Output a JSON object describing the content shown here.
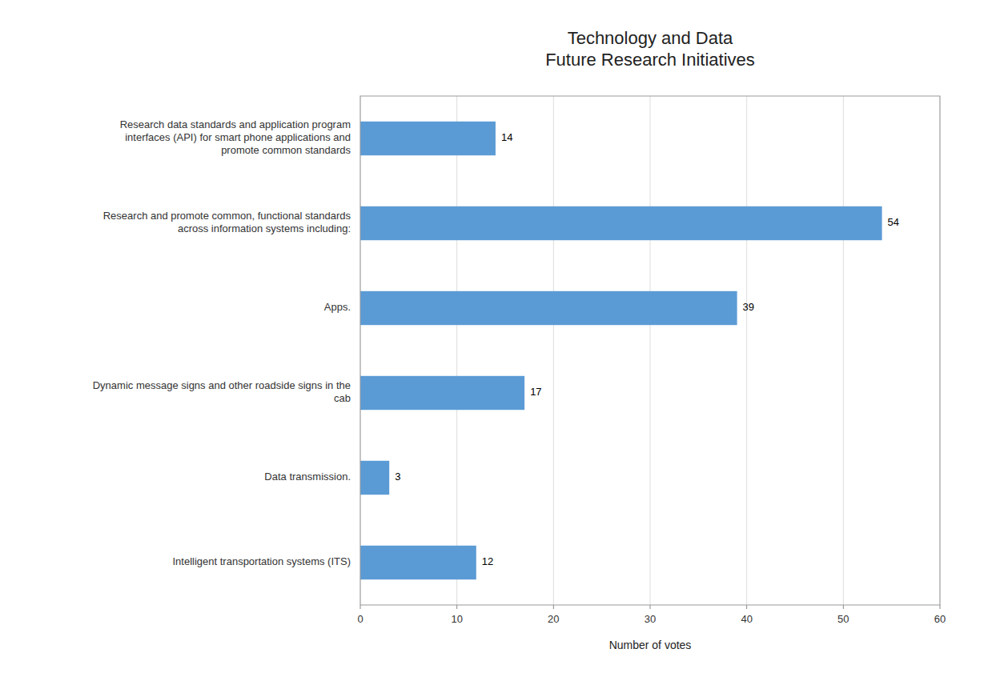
{
  "chart_data": {
    "type": "bar",
    "orientation": "horizontal",
    "title": "Technology and Data\nFuture Research Initiatives",
    "categories": [
      "Research data standards and application program\ninterfaces (API) for smart phone applications and\npromote common standards",
      "Research and promote common, functional standards\nacross information systems including:",
      "Apps.",
      "Dynamic message signs and other roadside signs in the\ncab",
      "Data transmission.",
      "Intelligent transportation systems (ITS)"
    ],
    "values": [
      14,
      54,
      39,
      17,
      3,
      12
    ],
    "color": "#5B9BD5",
    "xlabel": "Number of votes",
    "xlim": [
      0,
      60
    ],
    "xticks": [
      0,
      10,
      20,
      30,
      40,
      50,
      60
    ],
    "grid": true,
    "data_labels": true
  }
}
